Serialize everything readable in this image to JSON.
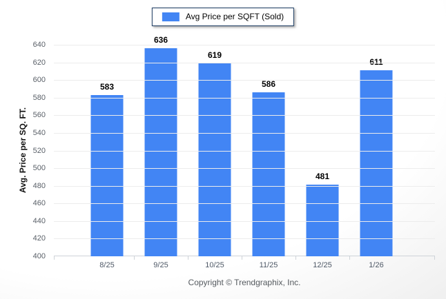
{
  "legend": {
    "label": "Avg Price per SQFT (Sold)",
    "swatch_color": "#4285f4"
  },
  "footer": {
    "text": "Copyright © Trendgraphix, Inc."
  },
  "colors": {
    "bar": "#4285f4",
    "gridline": "#ececec",
    "axis": "#ced3d8",
    "legend_border": "#17375e",
    "tick_text": "#5a6068",
    "category_text": "#4e5866"
  },
  "chart_data": {
    "type": "bar",
    "title": "",
    "categories": [
      "8/25",
      "9/25",
      "10/25",
      "11/25",
      "12/25",
      "1/26"
    ],
    "values": [
      583,
      636,
      619,
      586,
      481,
      611
    ],
    "series": [
      {
        "name": "Avg Price per SQFT (Sold)",
        "values": [
          583,
          636,
          619,
          586,
          481,
          611
        ]
      }
    ],
    "xlabel": "",
    "ylabel": "Avg. Price per SQ. FT.",
    "ylim": [
      400,
      640
    ],
    "y_tick_step": 20,
    "y_ticks": [
      400,
      420,
      440,
      460,
      480,
      500,
      520,
      540,
      560,
      580,
      600,
      620,
      640
    ],
    "grid": true,
    "legend_position": "top-center",
    "bar_color": "#4285f4",
    "value_labels": true
  }
}
